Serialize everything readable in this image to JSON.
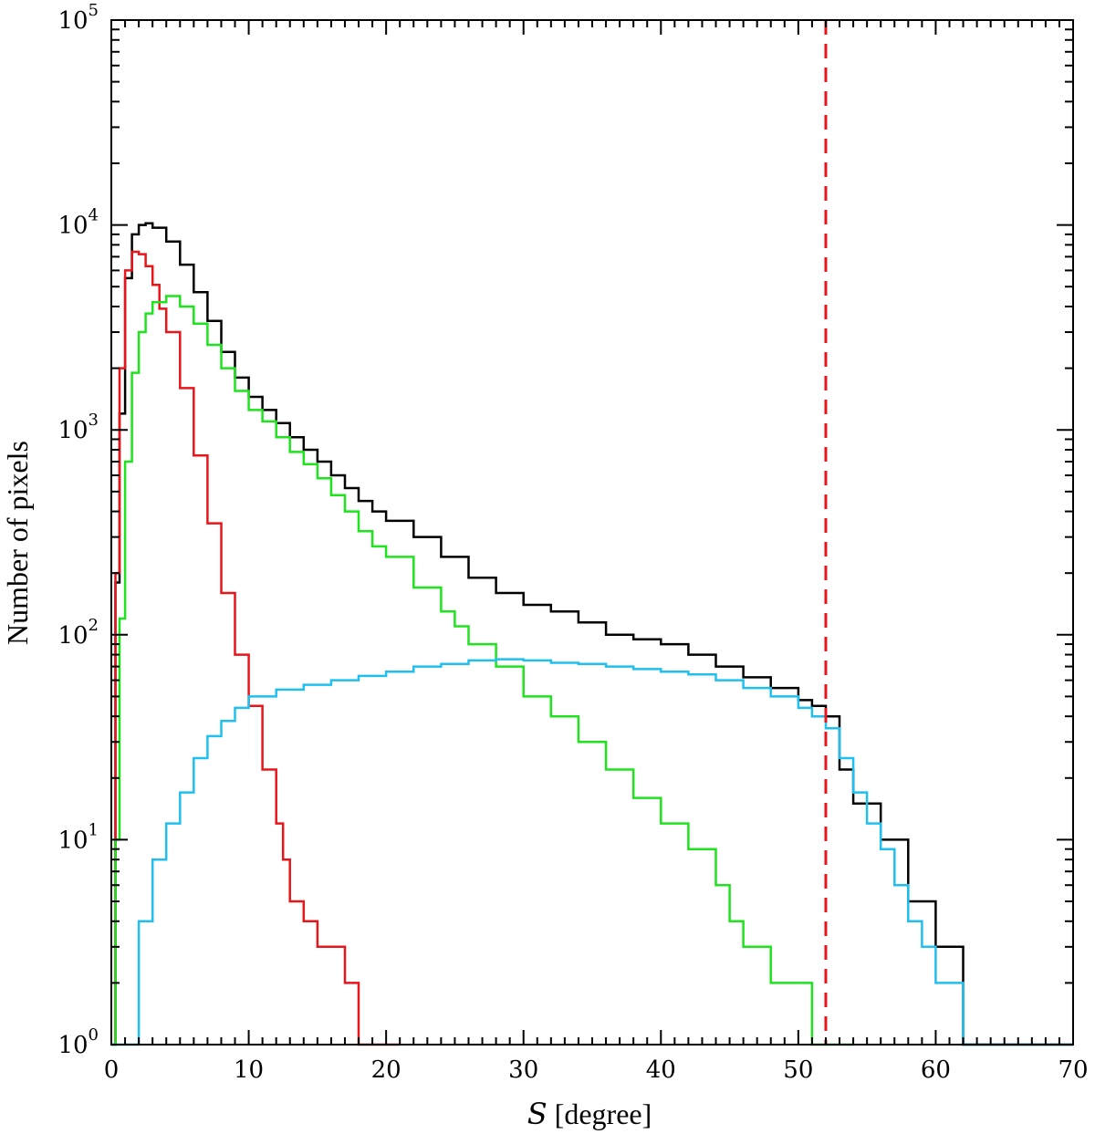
{
  "chart_data": {
    "type": "line",
    "title": "",
    "xlabel": "S [degree]",
    "xlabel_parts": {
      "symbol": "S",
      "unit": "[degree]"
    },
    "ylabel": "Number of pixels",
    "xlim": [
      0,
      70
    ],
    "ylim": [
      1,
      100000
    ],
    "yscale": "log",
    "x_ticks": [
      "0",
      "10",
      "20",
      "30",
      "40",
      "50",
      "60",
      "70"
    ],
    "y_ticks": [
      {
        "base": "10",
        "exp": "0"
      },
      {
        "base": "10",
        "exp": "1"
      },
      {
        "base": "10",
        "exp": "2"
      },
      {
        "base": "10",
        "exp": "3"
      },
      {
        "base": "10",
        "exp": "4"
      },
      {
        "base": "10",
        "exp": "5"
      }
    ],
    "grid": false,
    "legend": "none",
    "vline": {
      "x": 52,
      "color": "#e8151b",
      "style": "dashed"
    },
    "series": [
      {
        "color": "#000000",
        "x": [
          0,
          0.3,
          0.6,
          1,
          1.5,
          2,
          2.5,
          3,
          4,
          5,
          6,
          7,
          8,
          9,
          10,
          11,
          12,
          13,
          14,
          15,
          16,
          17,
          18,
          19,
          20,
          22,
          24,
          26,
          28,
          30,
          32,
          34,
          36,
          38,
          40,
          42,
          44,
          46,
          48,
          50,
          51,
          52,
          53,
          54,
          56,
          58,
          60,
          62,
          66,
          70
        ],
        "y": [
          1,
          180,
          1200,
          5500,
          9000,
          10000,
          10200,
          9700,
          8300,
          6400,
          4700,
          3400,
          2400,
          1800,
          1450,
          1250,
          1080,
          920,
          800,
          700,
          600,
          520,
          450,
          400,
          360,
          300,
          240,
          190,
          160,
          140,
          130,
          115,
          100,
          95,
          90,
          80,
          70,
          62,
          55,
          48,
          45,
          40,
          22,
          15,
          10,
          5,
          3,
          1,
          1,
          1
        ]
      },
      {
        "color": "#e8151b",
        "x": [
          0,
          0.3,
          0.6,
          1,
          1.5,
          2,
          2.5,
          3,
          3.5,
          4,
          5,
          6,
          7,
          8,
          9,
          10,
          11,
          12,
          12.5,
          13,
          14,
          15,
          16,
          17,
          18,
          21
        ],
        "y": [
          1,
          200,
          2000,
          6000,
          7400,
          7200,
          6300,
          5100,
          3900,
          3000,
          1600,
          750,
          350,
          160,
          80,
          45,
          22,
          12,
          8,
          5,
          4,
          3,
          3,
          2,
          1,
          1
        ]
      },
      {
        "color": "#1ee41e",
        "x": [
          0,
          0.3,
          0.6,
          1,
          1.5,
          2,
          2.5,
          3,
          4,
          5,
          6,
          7,
          8,
          9,
          10,
          11,
          12,
          13,
          14,
          15,
          16,
          17,
          18,
          19,
          20,
          22,
          24,
          25,
          26,
          28,
          30,
          32,
          34,
          36,
          38,
          40,
          42,
          44,
          45,
          46,
          48,
          50,
          51,
          52,
          53,
          54
        ],
        "y": [
          1,
          10,
          120,
          700,
          1900,
          3000,
          3700,
          4200,
          4500,
          4000,
          3300,
          2600,
          2000,
          1550,
          1250,
          1100,
          920,
          780,
          680,
          580,
          480,
          400,
          320,
          270,
          240,
          170,
          130,
          110,
          90,
          70,
          50,
          40,
          30,
          22,
          16,
          12,
          9,
          6,
          4,
          3,
          2,
          2,
          1,
          1,
          1,
          1
        ]
      },
      {
        "color": "#1fc0ef",
        "x": [
          0,
          1.5,
          2,
          3,
          4,
          5,
          6,
          7,
          8,
          9,
          10,
          12,
          14,
          16,
          18,
          20,
          22,
          24,
          26,
          28,
          30,
          32,
          34,
          36,
          38,
          40,
          42,
          44,
          46,
          48,
          50,
          51,
          52,
          53,
          54,
          55,
          56,
          57,
          58,
          59,
          60,
          61,
          62,
          65,
          70
        ],
        "y": [
          1,
          1,
          4,
          8,
          12,
          17,
          25,
          32,
          38,
          44,
          50,
          54,
          57,
          60,
          63,
          66,
          70,
          72,
          75,
          76,
          75,
          73,
          72,
          70,
          68,
          66,
          64,
          60,
          55,
          50,
          44,
          40,
          35,
          25,
          17,
          12,
          9,
          6,
          4,
          3,
          2,
          2,
          1,
          1,
          1
        ]
      }
    ]
  }
}
